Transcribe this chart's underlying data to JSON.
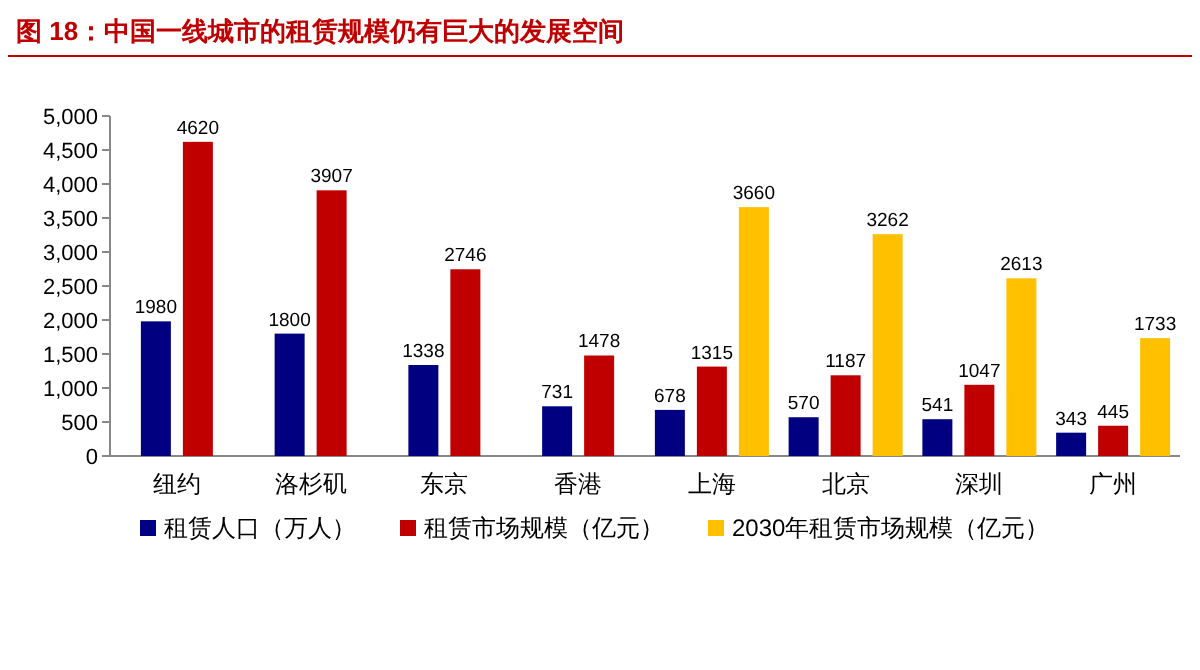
{
  "chart_data": {
    "type": "bar",
    "title": "图 18：中国一线城市的租赁规模仍有巨大的发展空间",
    "categories": [
      "纽约",
      "洛杉矶",
      "东京",
      "香港",
      "上海",
      "北京",
      "深圳",
      "广州"
    ],
    "series": [
      {
        "name": "租赁人口（万人）",
        "color": "#000080",
        "values": [
          1980,
          1800,
          1338,
          731,
          678,
          570,
          541,
          343
        ]
      },
      {
        "name": "租赁市场规模（亿元）",
        "color": "#c00000",
        "values": [
          4620,
          3907,
          2746,
          1478,
          1315,
          1187,
          1047,
          445
        ]
      },
      {
        "name": "2030年租赁市场规模（亿元）",
        "color": "#ffc000",
        "values": [
          null,
          null,
          null,
          null,
          3660,
          3262,
          2613,
          1733
        ]
      }
    ],
    "ylim": [
      0,
      5000
    ],
    "yticks": [
      {
        "value": 0,
        "label": "0"
      },
      {
        "value": 500,
        "label": "500"
      },
      {
        "value": 1000,
        "label": "1,000"
      },
      {
        "value": 1500,
        "label": "1,500"
      },
      {
        "value": 2000,
        "label": "2,000"
      },
      {
        "value": 2500,
        "label": "2,500"
      },
      {
        "value": 3000,
        "label": "3,000"
      },
      {
        "value": 3500,
        "label": "3,500"
      },
      {
        "value": 4000,
        "label": "4,000"
      },
      {
        "value": 4500,
        "label": "4,500"
      },
      {
        "value": 5000,
        "label": "5,000"
      }
    ],
    "data_labels": true,
    "legend": "bottom",
    "grid": false
  }
}
